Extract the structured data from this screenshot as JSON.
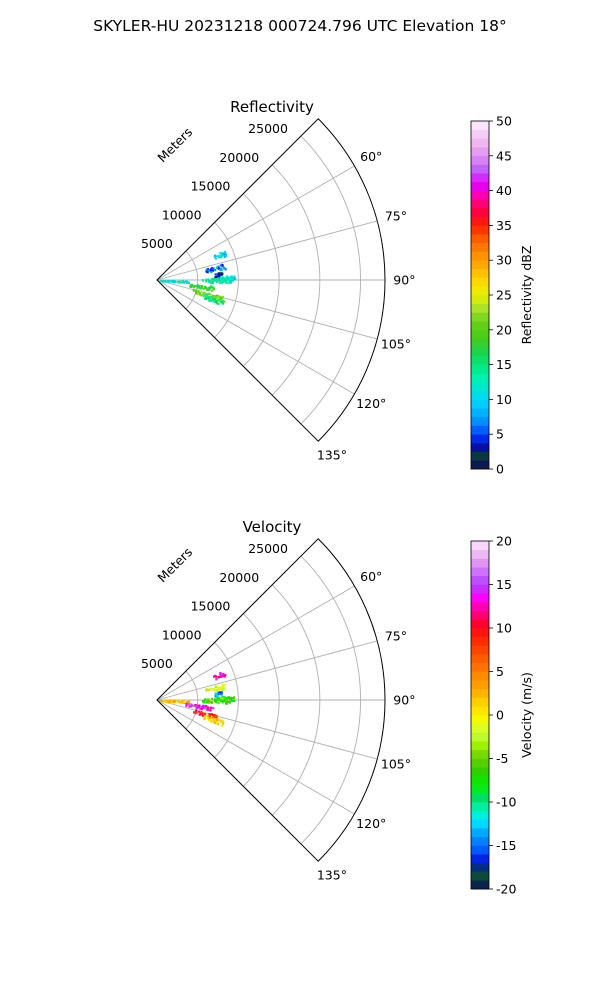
{
  "figure": {
    "title": "SKYLER-HU  20231218  000724.796 UTC Elevation 18°"
  },
  "chart_data": [
    {
      "type": "polar-sector",
      "title": "Reflectivity",
      "radial_label": "Meters",
      "theta_range_deg": [
        45,
        135
      ],
      "theta_ticks": [
        "60°",
        "75°",
        "90°",
        "105°",
        "120°",
        "135°"
      ],
      "theta_tick_values": [
        60,
        75,
        90,
        105,
        120,
        135
      ],
      "radial_range": [
        0,
        28000
      ],
      "radial_ticks": [
        "5000",
        "10000",
        "15000",
        "20000",
        "25000"
      ],
      "radial_tick_values": [
        5000,
        10000,
        15000,
        20000,
        25000
      ],
      "grid": true,
      "colorbar": {
        "label": "Reflectivity dBZ",
        "range": [
          0,
          50
        ],
        "ticks": [
          "0",
          "5",
          "10",
          "15",
          "20",
          "25",
          "30",
          "35",
          "40",
          "45",
          "50"
        ],
        "tick_values": [
          0,
          5,
          10,
          15,
          20,
          25,
          30,
          35,
          40,
          45,
          50
        ]
      },
      "echoes": [
        {
          "theta": 88,
          "r_min": 7000,
          "r_max": 9500,
          "value": 11
        },
        {
          "theta": 90,
          "r_min": 5500,
          "r_max": 9000,
          "value": 13
        },
        {
          "theta": 92,
          "r_min": 400,
          "r_max": 3800,
          "value": 12
        },
        {
          "theta": 98,
          "r_min": 4000,
          "r_max": 7000,
          "value": 18
        },
        {
          "theta": 106,
          "r_min": 4500,
          "r_max": 8500,
          "value": 21
        },
        {
          "theta": 109,
          "r_min": 6000,
          "r_max": 8600,
          "value": 15
        },
        {
          "theta": 78,
          "r_min": 6000,
          "r_max": 8500,
          "value": 6
        },
        {
          "theta": 68,
          "r_min": 7500,
          "r_max": 9000,
          "value": 10
        },
        {
          "theta": 84,
          "r_min": 7000,
          "r_max": 8000,
          "value": 3
        }
      ]
    },
    {
      "type": "polar-sector",
      "title": "Velocity",
      "radial_label": "Meters",
      "theta_range_deg": [
        45,
        135
      ],
      "theta_ticks": [
        "60°",
        "75°",
        "90°",
        "105°",
        "120°",
        "135°"
      ],
      "theta_tick_values": [
        60,
        75,
        90,
        105,
        120,
        135
      ],
      "radial_range": [
        0,
        28000
      ],
      "radial_ticks": [
        "5000",
        "10000",
        "15000",
        "20000",
        "25000"
      ],
      "radial_tick_values": [
        5000,
        10000,
        15000,
        20000,
        25000
      ],
      "grid": true,
      "colorbar": {
        "label": "Velocity (m/s)",
        "range": [
          -20,
          20
        ],
        "ticks": [
          "-20",
          "-15",
          "-10",
          "-5",
          "0",
          "5",
          "10",
          "15",
          "20"
        ],
        "tick_values": [
          -20,
          -15,
          -10,
          -5,
          0,
          5,
          10,
          15,
          20
        ]
      },
      "echoes": [
        {
          "theta": 88,
          "r_min": 7000,
          "r_max": 9500,
          "value": -7
        },
        {
          "theta": 90,
          "r_min": 5500,
          "r_max": 9000,
          "value": -6
        },
        {
          "theta": 92,
          "r_min": 400,
          "r_max": 3800,
          "value": 2
        },
        {
          "theta": 98,
          "r_min": 3500,
          "r_max": 7000,
          "value": 14
        },
        {
          "theta": 106,
          "r_min": 4500,
          "r_max": 7500,
          "value": 9
        },
        {
          "theta": 109,
          "r_min": 6000,
          "r_max": 8600,
          "value": 1
        },
        {
          "theta": 78,
          "r_min": 6000,
          "r_max": 8500,
          "value": -1
        },
        {
          "theta": 68,
          "r_min": 7500,
          "r_max": 9000,
          "value": 13
        },
        {
          "theta": 84,
          "r_min": 7000,
          "r_max": 8000,
          "value": -14
        }
      ]
    }
  ]
}
